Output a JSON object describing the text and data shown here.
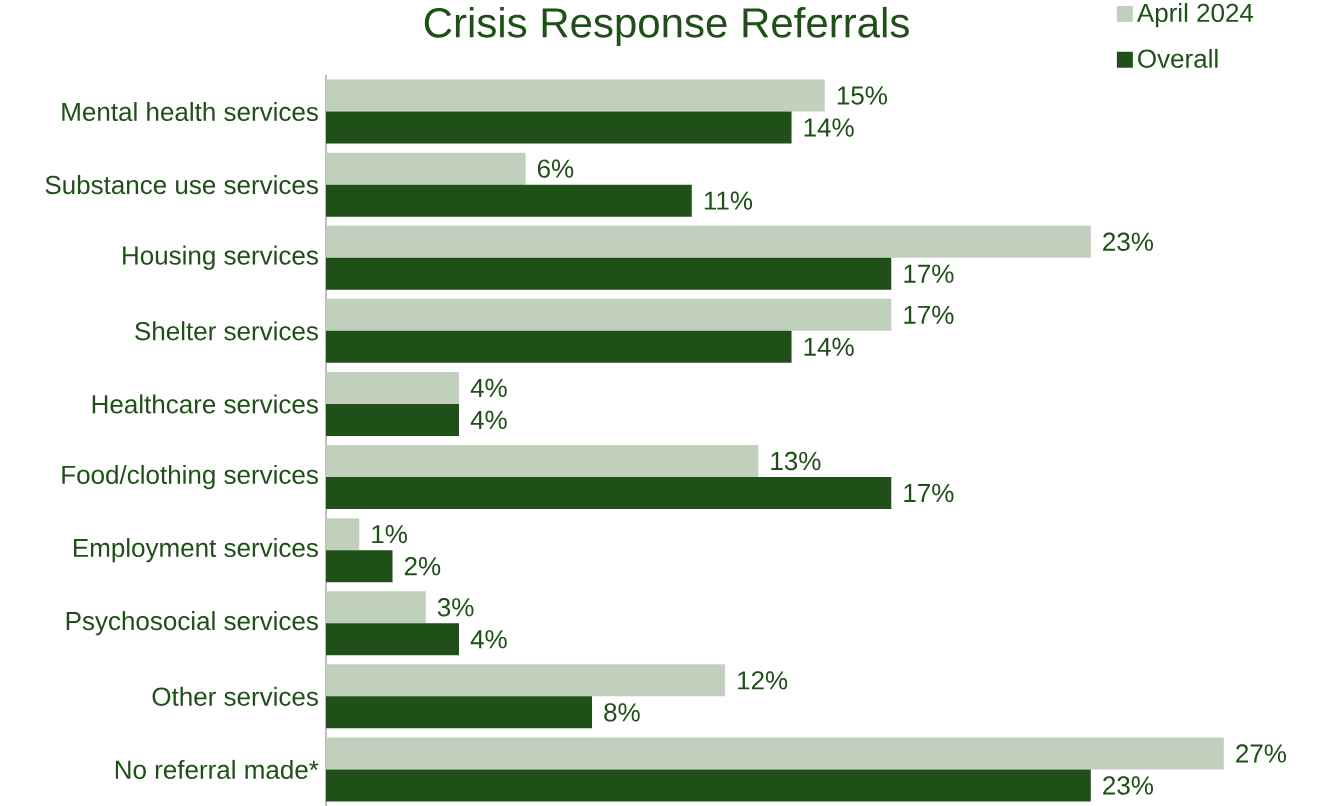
{
  "chart_data": {
    "type": "bar",
    "orientation": "horizontal",
    "title": "Crisis Response Referrals",
    "categories": [
      "Mental health services",
      "Substance use services",
      "Housing services",
      "Shelter services",
      "Healthcare services",
      "Food/clothing services",
      "Employment services",
      "Psychosocial services",
      "Other services",
      "No referral made*"
    ],
    "series": [
      {
        "name": "April 2024",
        "color": "#c0d0bc",
        "values": [
          15,
          6,
          23,
          17,
          4,
          13,
          1,
          3,
          12,
          27
        ],
        "value_labels": [
          "15%",
          "6%",
          "23%",
          "17%",
          "4%",
          "13%",
          "1%",
          "3%",
          "12%",
          "27%"
        ]
      },
      {
        "name": "Overall",
        "color": "#1f5018",
        "values": [
          14,
          11,
          17,
          14,
          4,
          17,
          2,
          4,
          8,
          23
        ],
        "value_labels": [
          "14%",
          "11%",
          "17%",
          "14%",
          "4%",
          "17%",
          "2%",
          "4%",
          "8%",
          "23%"
        ]
      }
    ],
    "legend": "top right"
  }
}
